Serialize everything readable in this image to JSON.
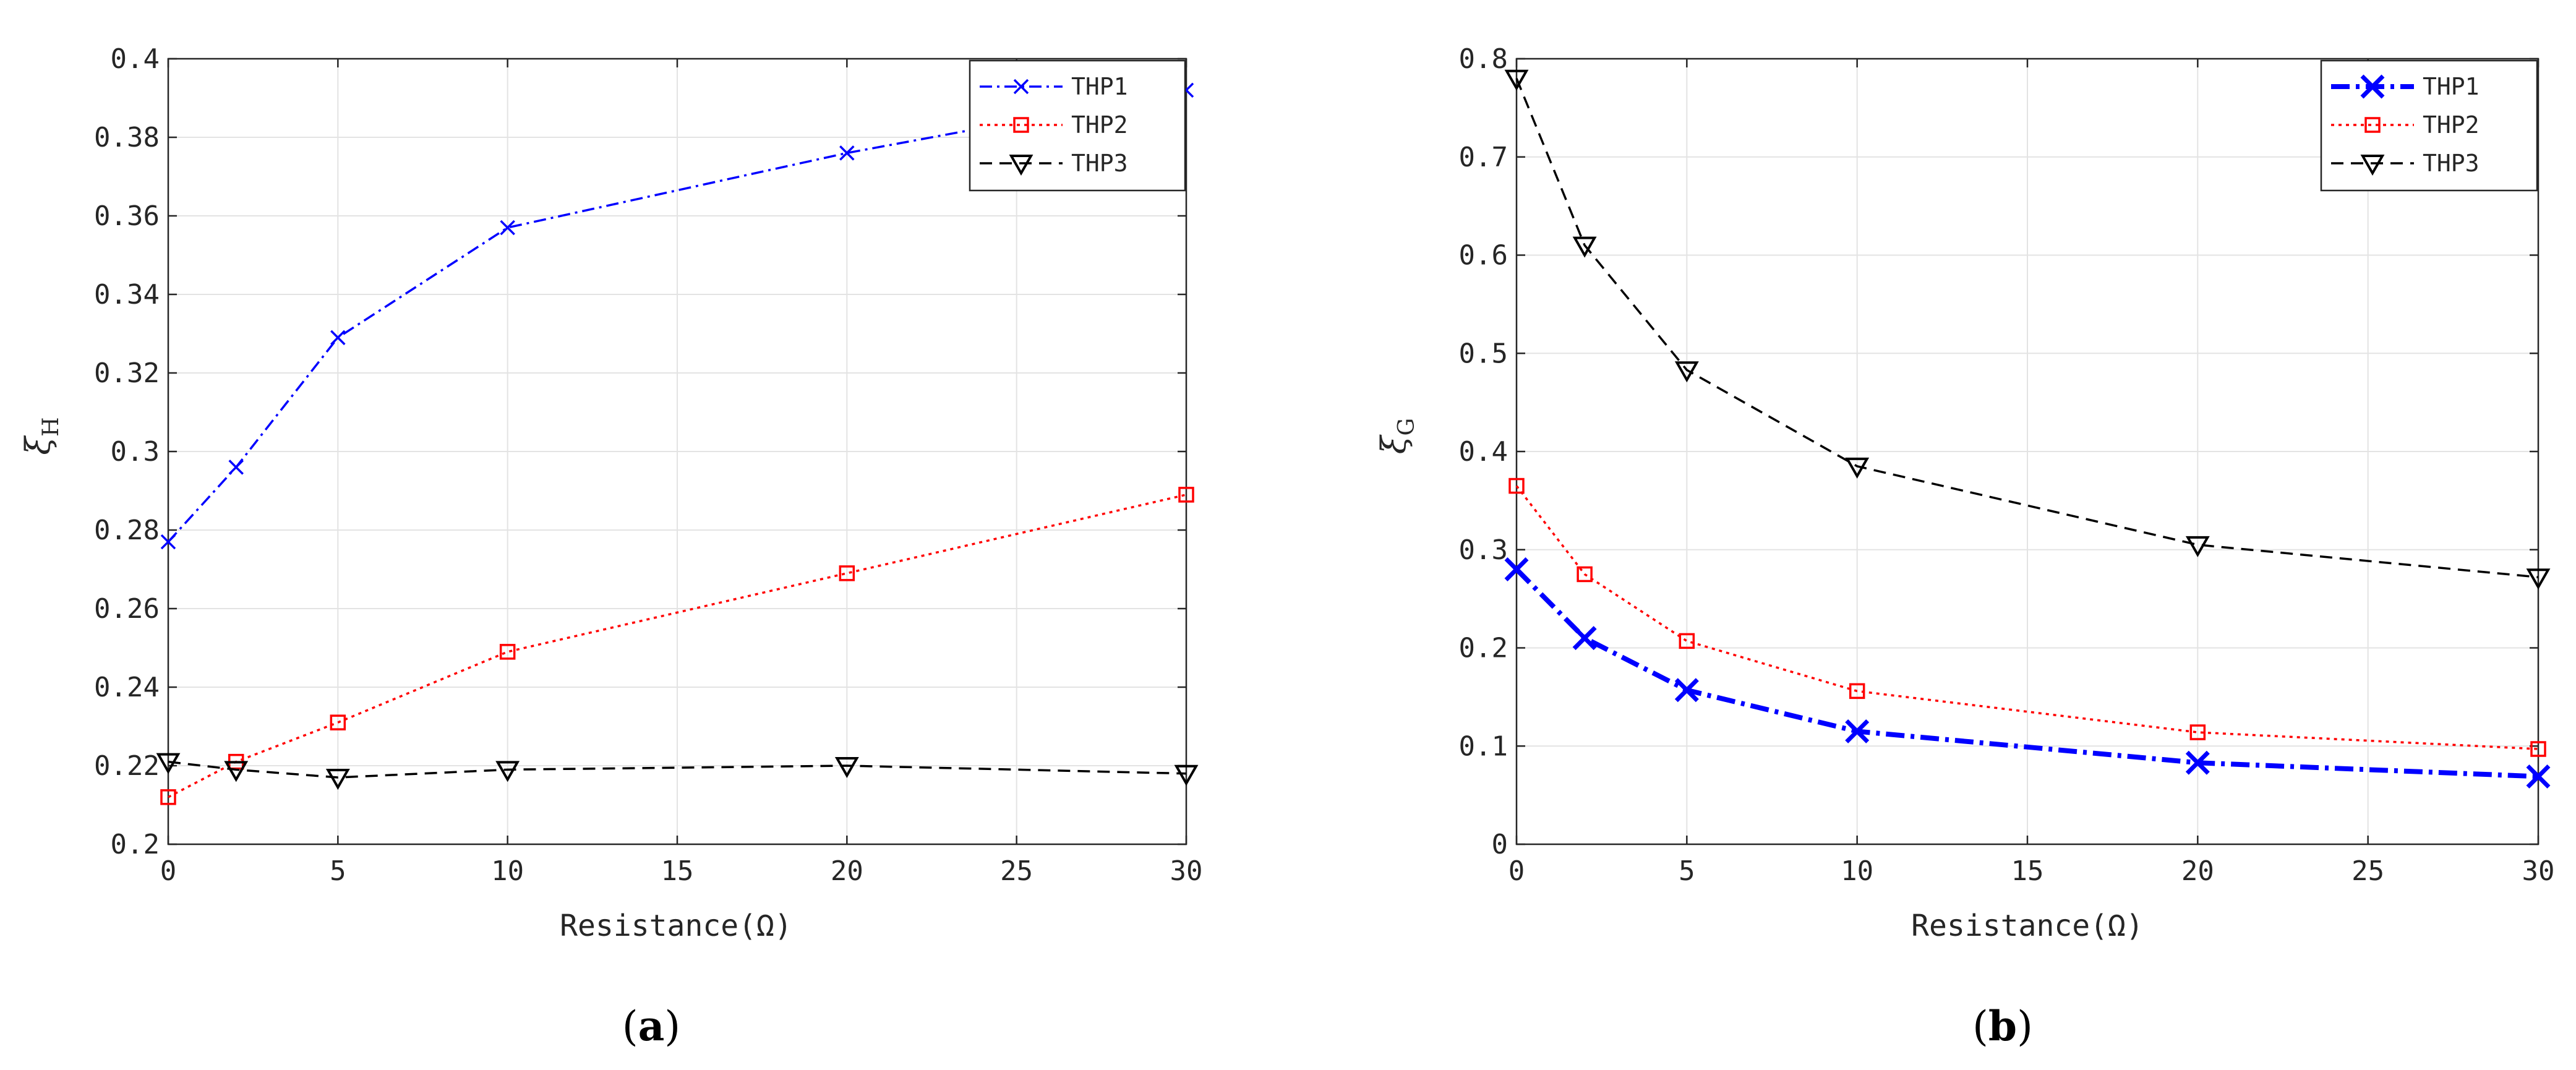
{
  "figure": {
    "panels": [
      {
        "caption_open": "(",
        "caption_letter": "a",
        "caption_close": ")",
        "ylabel_main": "ξ",
        "ylabel_sub": "H"
      },
      {
        "caption_open": "(",
        "caption_letter": "b",
        "caption_close": ")",
        "ylabel_main": "ξ",
        "ylabel_sub": "G"
      }
    ]
  },
  "chart_data": [
    {
      "type": "line",
      "title": "",
      "xlabel": "Resistance(Ω)",
      "ylabel": "ξH",
      "xlim": [
        0,
        30
      ],
      "ylim": [
        0.2,
        0.4
      ],
      "xticks": [
        0,
        5,
        10,
        15,
        20,
        25,
        30
      ],
      "yticks": [
        0.2,
        0.22,
        0.24,
        0.26,
        0.28,
        0.3,
        0.32,
        0.34,
        0.36,
        0.38,
        0.4
      ],
      "ytick_labels": [
        "0.2",
        "0.22",
        "0.24",
        "0.26",
        "0.28",
        "0.3",
        "0.32",
        "0.34",
        "0.36",
        "0.38",
        "0.4"
      ],
      "xtick_labels": [
        "0",
        "5",
        "10",
        "15",
        "20",
        "25",
        "30"
      ],
      "grid": true,
      "legend_position": "top-right",
      "x": [
        0,
        2,
        5,
        10,
        20,
        30
      ],
      "series": [
        {
          "name": "THP1",
          "values": [
            0.277,
            0.296,
            0.329,
            0.357,
            0.376,
            0.392
          ],
          "color": "#0000ff",
          "dash": "dashdot",
          "marker": "x",
          "thick": false
        },
        {
          "name": "THP2",
          "values": [
            0.212,
            0.221,
            0.231,
            0.249,
            0.269,
            0.289
          ],
          "color": "#ff0000",
          "dash": "dotted",
          "marker": "square",
          "thick": false
        },
        {
          "name": "THP3",
          "values": [
            0.221,
            0.219,
            0.217,
            0.219,
            0.22,
            0.218
          ],
          "color": "#000000",
          "dash": "dashed",
          "marker": "triangle-down",
          "thick": false
        }
      ]
    },
    {
      "type": "line",
      "title": "",
      "xlabel": "Resistance(Ω)",
      "ylabel": "ξG",
      "xlim": [
        0,
        30
      ],
      "ylim": [
        0,
        0.8
      ],
      "xticks": [
        0,
        5,
        10,
        15,
        20,
        25,
        30
      ],
      "yticks": [
        0,
        0.1,
        0.2,
        0.3,
        0.4,
        0.5,
        0.6,
        0.7,
        0.8
      ],
      "ytick_labels": [
        "0",
        "0.1",
        "0.2",
        "0.3",
        "0.4",
        "0.5",
        "0.6",
        "0.7",
        "0.8"
      ],
      "xtick_labels": [
        "0",
        "5",
        "10",
        "15",
        "20",
        "25",
        "30"
      ],
      "grid": true,
      "legend_position": "top-right",
      "x": [
        0,
        2,
        5,
        10,
        20,
        30
      ],
      "series": [
        {
          "name": "THP1",
          "values": [
            0.28,
            0.21,
            0.157,
            0.115,
            0.083,
            0.069
          ],
          "color": "#0000ff",
          "dash": "dashdot",
          "marker": "x",
          "thick": true
        },
        {
          "name": "THP2",
          "values": [
            0.365,
            0.275,
            0.207,
            0.156,
            0.114,
            0.097
          ],
          "color": "#ff0000",
          "dash": "dotted",
          "marker": "square",
          "thick": false
        },
        {
          "name": "THP3",
          "values": [
            0.78,
            0.61,
            0.483,
            0.385,
            0.305,
            0.272
          ],
          "color": "#000000",
          "dash": "dashed",
          "marker": "triangle-down",
          "thick": false
        }
      ]
    }
  ]
}
